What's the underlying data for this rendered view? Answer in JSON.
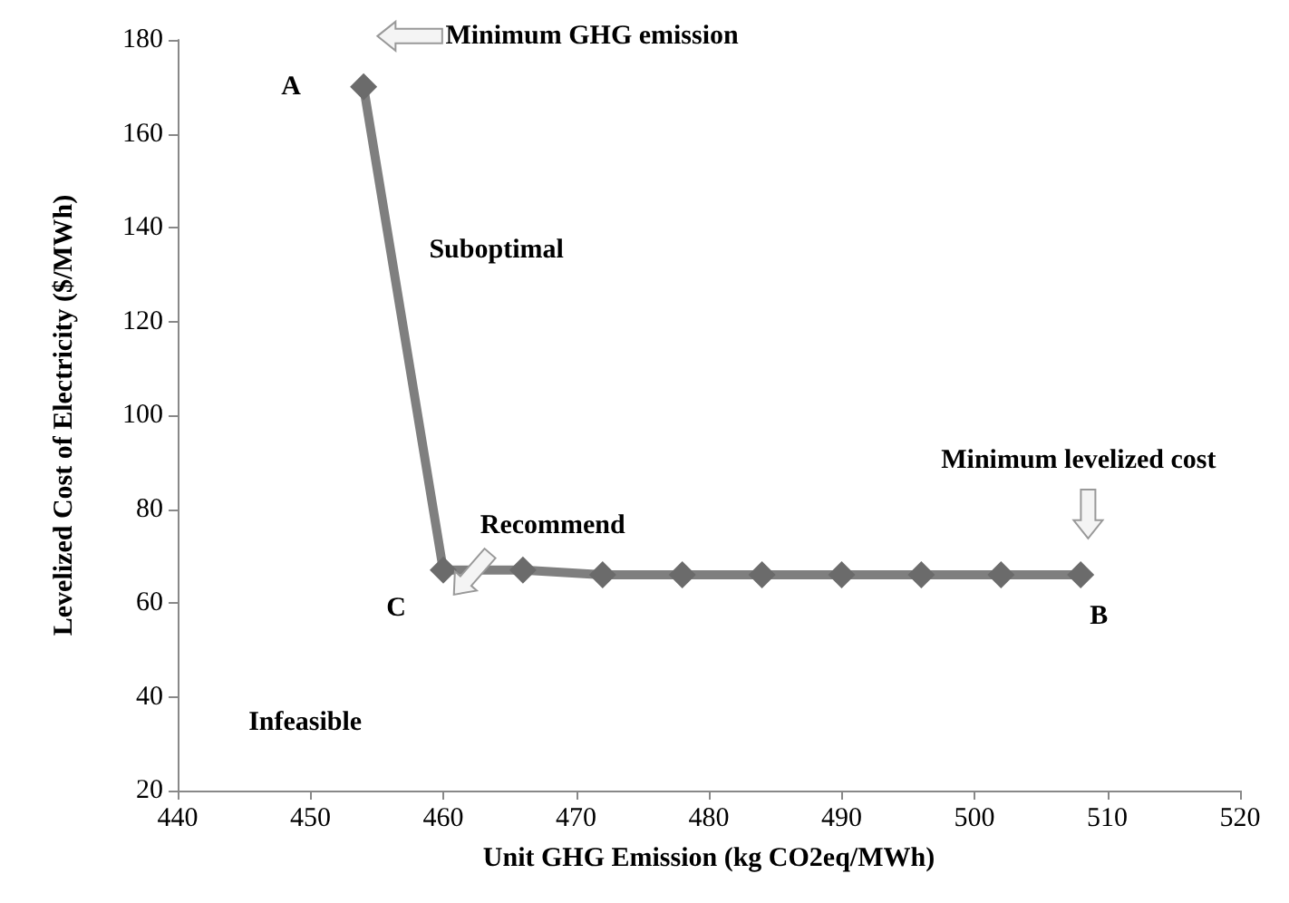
{
  "chart_data": {
    "type": "line",
    "xlabel": "Unit GHG Emission (kg CO2eq/MWh)",
    "ylabel": "Levelized Cost of Electricity ($/MWh)",
    "x": [
      454,
      460,
      466,
      472,
      478,
      484,
      490,
      496,
      502,
      508
    ],
    "series": [
      {
        "color": "#7f7f7f",
        "values": [
          170,
          67,
          67,
          66,
          66,
          66,
          66,
          66,
          66,
          66
        ]
      }
    ],
    "xlim": [
      440,
      520
    ],
    "xticks": [
      440,
      450,
      460,
      470,
      480,
      490,
      500,
      510,
      520
    ],
    "ylim": [
      20,
      180
    ],
    "yticks": [
      20,
      40,
      60,
      80,
      100,
      120,
      140,
      160,
      180
    ],
    "grid": false,
    "marker": "diamond",
    "line_style": "solid",
    "annotations": [
      {
        "text": "A",
        "x": 454,
        "y": 170
      },
      "Minimum GHG emission",
      "Suboptimal",
      "Recommend",
      "Minimum levelized cost",
      {
        "text": "C",
        "x": 460,
        "y": 67
      },
      {
        "text": "B",
        "x": 508,
        "y": 66
      },
      "Infeasible"
    ]
  }
}
